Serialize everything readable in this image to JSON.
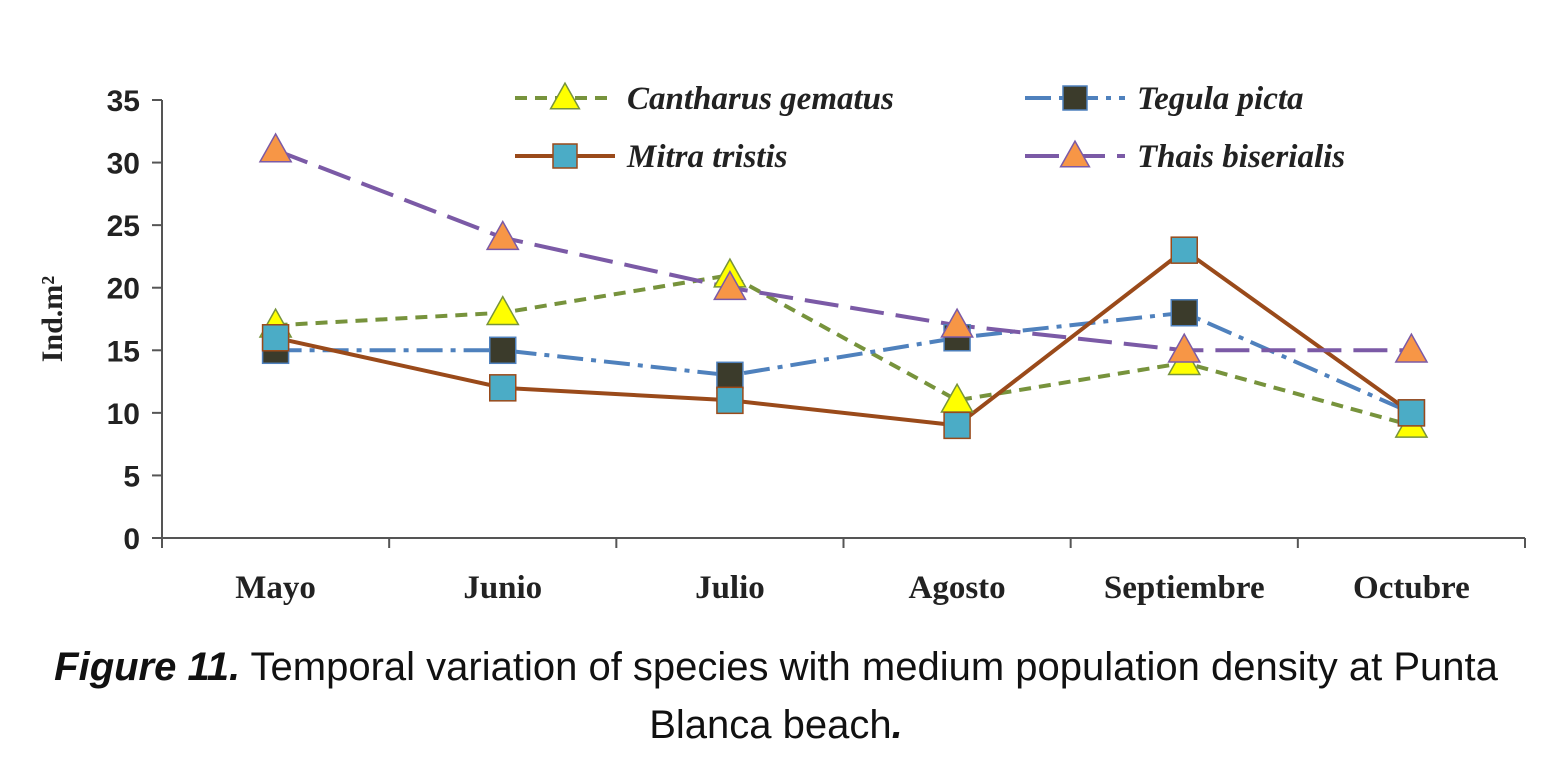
{
  "chart_data": {
    "type": "line",
    "categories": [
      "Mayo",
      "Junio",
      "Julio",
      "Agosto",
      "Septiembre",
      "Octubre"
    ],
    "ylabel": "Ind.m²",
    "ylim": [
      0,
      35
    ],
    "yticks": [
      0,
      5,
      10,
      15,
      20,
      25,
      30,
      35
    ],
    "grid": false,
    "legend_position": "top",
    "series": [
      {
        "name": "Cantharus gematus",
        "values": [
          17,
          18,
          21,
          11,
          14,
          9
        ],
        "color": "#77933c",
        "marker_fill": "#ffff00",
        "marker": "triangle",
        "dash": "dash"
      },
      {
        "name": "Tegula picta",
        "values": [
          15,
          15,
          13,
          16,
          18,
          10
        ],
        "color": "#4f81bd",
        "marker_fill": "#3b3b2b",
        "marker": "square",
        "dash": "dashdot"
      },
      {
        "name": "Mitra tristis",
        "values": [
          16,
          12,
          11,
          9,
          23,
          10
        ],
        "color": "#9a4a1a",
        "marker_fill": "#4bacc6",
        "marker": "square",
        "dash": "solid"
      },
      {
        "name": "Thais biserialis",
        "values": [
          31,
          24,
          20,
          17,
          15,
          15
        ],
        "color": "#7b5aa6",
        "marker_fill": "#f79646",
        "marker": "triangle",
        "dash": "longdash"
      }
    ]
  },
  "caption": {
    "figure_number": "Figure 11.",
    "text": " Temporal variation of species with medium population density at Punta Blanca beach",
    "ending": "."
  }
}
